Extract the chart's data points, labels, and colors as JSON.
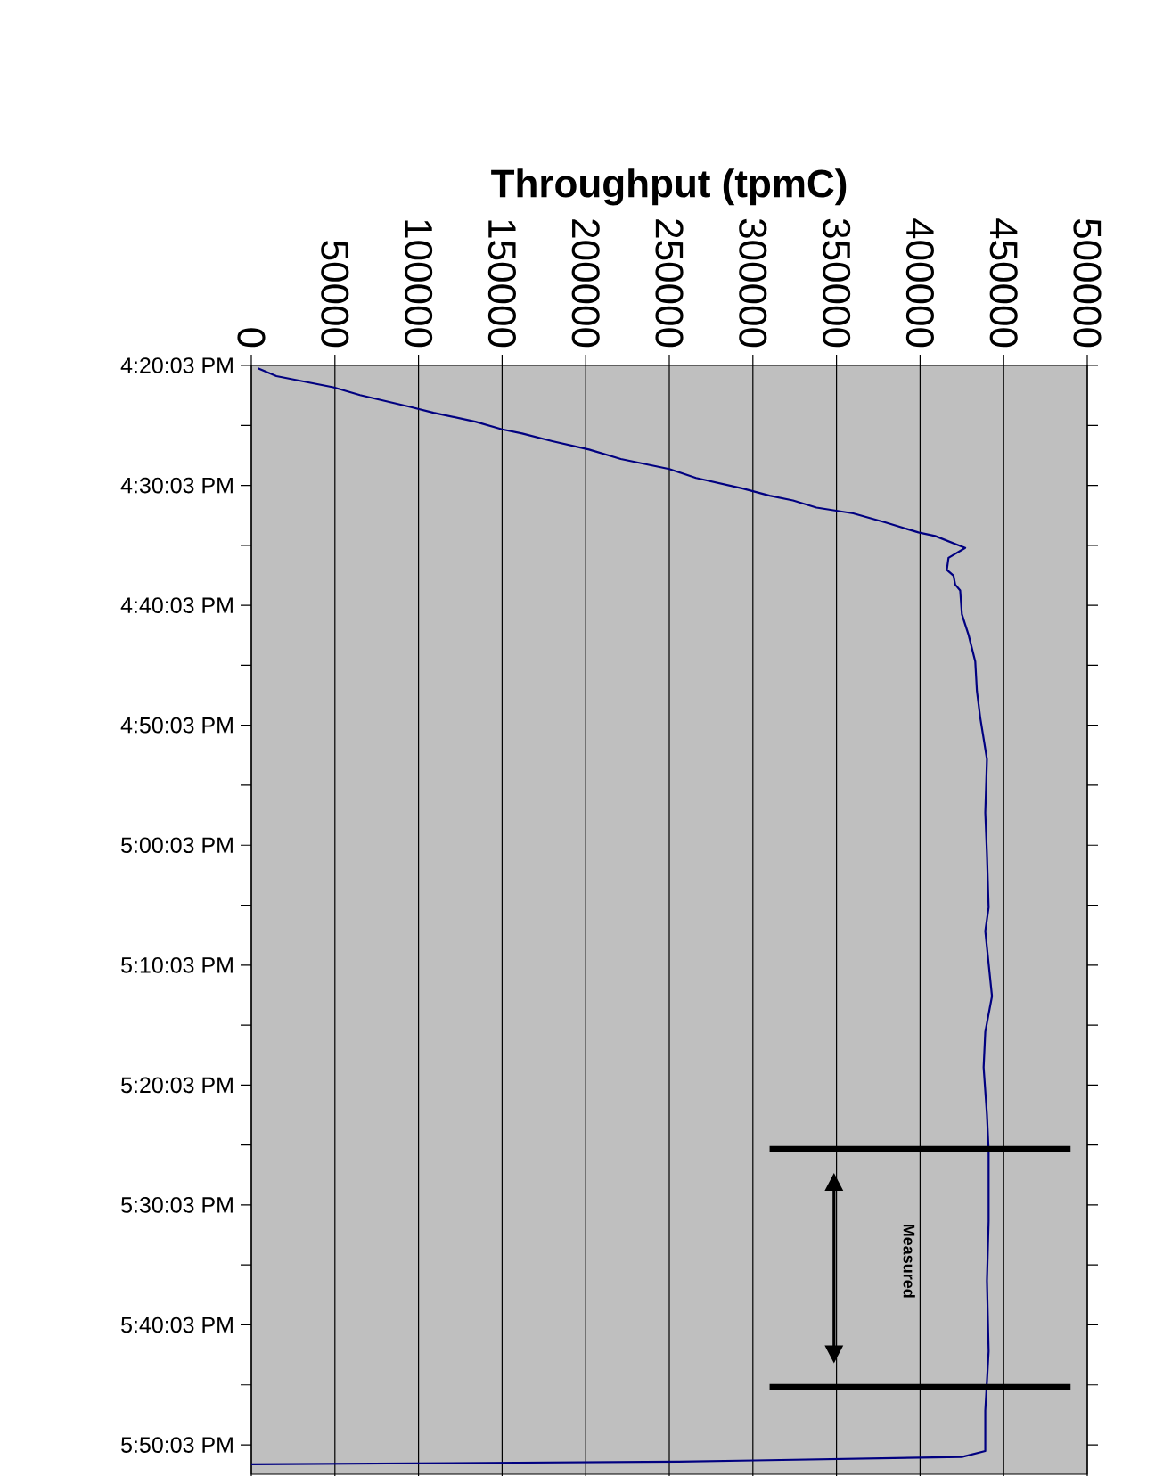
{
  "chart_data": {
    "type": "line",
    "orientation": "horizontal",
    "xlabel": "Throughput (tpmC)",
    "xlim": [
      0,
      500000
    ],
    "xticks": [
      0,
      50000,
      100000,
      150000,
      200000,
      250000,
      300000,
      350000,
      400000,
      450000,
      500000
    ],
    "ylim": [
      17.875,
      16.33417
    ],
    "yticks": [
      {
        "value": 16.33417,
        "label": "4:20:03 PM"
      },
      {
        "value": 16.4175,
        "label": null
      },
      {
        "value": 16.50083,
        "label": "4:30:03 PM"
      },
      {
        "value": 16.58417,
        "label": null
      },
      {
        "value": 16.6675,
        "label": "4:40:03 PM"
      },
      {
        "value": 16.75083,
        "label": null
      },
      {
        "value": 16.83417,
        "label": "4:50:03 PM"
      },
      {
        "value": 16.9175,
        "label": null
      },
      {
        "value": 17.00083,
        "label": "5:00:03 PM"
      },
      {
        "value": 17.08417,
        "label": null
      },
      {
        "value": 17.1675,
        "label": "5:10:03 PM"
      },
      {
        "value": 17.25083,
        "label": null
      },
      {
        "value": 17.33417,
        "label": "5:20:03 PM"
      },
      {
        "value": 17.4175,
        "label": null
      },
      {
        "value": 17.50083,
        "label": "5:30:03 PM"
      },
      {
        "value": 17.58417,
        "label": null
      },
      {
        "value": 17.6675,
        "label": "5:40:03 PM"
      },
      {
        "value": 17.75083,
        "label": null
      },
      {
        "value": 17.83417,
        "label": "5:50:03 PM"
      }
    ],
    "grid": "x",
    "ref_lines": [
      {
        "axis": "y",
        "value": 17.4231,
        "color": "#000000"
      },
      {
        "axis": "y",
        "value": 17.754,
        "color": "#000000"
      }
    ],
    "annotations": [
      "Measured"
    ],
    "series": [
      {
        "color": "#000080",
        "x": [
          16.3383,
          16.349,
          16.3645,
          16.3753,
          16.3918,
          16.4,
          16.4123,
          16.423,
          16.4288,
          16.4395,
          16.451,
          16.4642,
          16.4782,
          16.4905,
          16.5053,
          16.5152,
          16.5218,
          16.5317,
          16.5398,
          16.5522,
          16.5663,
          16.5712,
          16.5877,
          16.6015,
          16.6182,
          16.6263,
          16.6387,
          16.647,
          16.6798,
          16.7087,
          16.7458,
          16.7868,
          16.8238,
          16.8815,
          16.9557,
          17.0132,
          17.0873,
          17.1202,
          17.2107,
          17.2602,
          17.3095,
          17.3753,
          17.4247,
          17.5235,
          17.6058,
          17.7042,
          17.7868,
          17.8428,
          17.851,
          17.8558,
          17.8575,
          17.8613
        ],
        "values": [
          4000,
          15000,
          49000,
          65000,
          95000,
          109000,
          134000,
          150000,
          162000,
          180000,
          202000,
          221000,
          250000,
          266000,
          294000,
          310000,
          324000,
          338000,
          360000,
          379000,
          399000,
          409000,
          427000,
          417000,
          416000,
          420000,
          421000,
          424000,
          425000,
          429000,
          433000,
          434000,
          436000,
          440000,
          439000,
          440000,
          441000,
          439000,
          443000,
          439000,
          438000,
          440000,
          441000,
          441000,
          440000,
          441000,
          439000,
          439000,
          425000,
          301000,
          255000,
          0
        ]
      }
    ]
  }
}
